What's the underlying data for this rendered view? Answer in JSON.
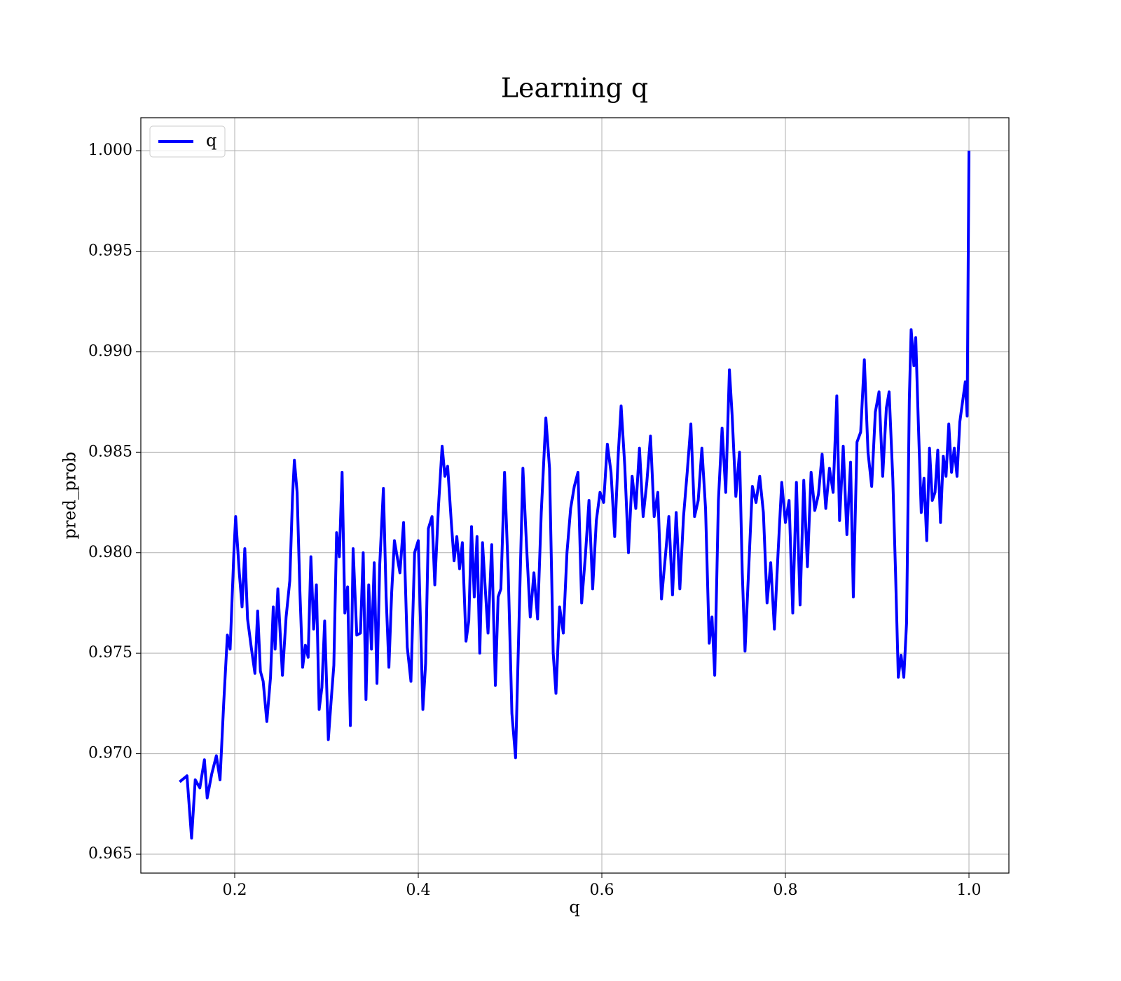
{
  "chart_data": {
    "type": "line",
    "title": "Learning q",
    "xlabel": "q",
    "ylabel": "pred_prob",
    "x": [
      0.14,
      0.148,
      0.153,
      0.157,
      0.162,
      0.167,
      0.17,
      0.175,
      0.18,
      0.184,
      0.188,
      0.192,
      0.195,
      0.199,
      0.201,
      0.205,
      0.208,
      0.211,
      0.214,
      0.218,
      0.222,
      0.225,
      0.228,
      0.231,
      0.235,
      0.239,
      0.242,
      0.244,
      0.247,
      0.252,
      0.256,
      0.26,
      0.263,
      0.265,
      0.268,
      0.271,
      0.274,
      0.277,
      0.28,
      0.283,
      0.286,
      0.289,
      0.292,
      0.295,
      0.298,
      0.302,
      0.305,
      0.308,
      0.311,
      0.314,
      0.317,
      0.32,
      0.323,
      0.326,
      0.329,
      0.333,
      0.337,
      0.34,
      0.343,
      0.346,
      0.349,
      0.352,
      0.355,
      0.358,
      0.362,
      0.365,
      0.368,
      0.371,
      0.374,
      0.38,
      0.384,
      0.388,
      0.392,
      0.396,
      0.4,
      0.405,
      0.408,
      0.411,
      0.415,
      0.418,
      0.422,
      0.426,
      0.429,
      0.432,
      0.436,
      0.439,
      0.442,
      0.445,
      0.448,
      0.452,
      0.455,
      0.458,
      0.461,
      0.464,
      0.467,
      0.47,
      0.473,
      0.476,
      0.48,
      0.484,
      0.487,
      0.49,
      0.494,
      0.498,
      0.502,
      0.506,
      0.51,
      0.514,
      0.518,
      0.522,
      0.526,
      0.53,
      0.534,
      0.539,
      0.543,
      0.547,
      0.55,
      0.554,
      0.558,
      0.562,
      0.566,
      0.57,
      0.574,
      0.578,
      0.582,
      0.586,
      0.59,
      0.594,
      0.598,
      0.602,
      0.606,
      0.61,
      0.614,
      0.618,
      0.621,
      0.625,
      0.629,
      0.633,
      0.637,
      0.641,
      0.645,
      0.649,
      0.653,
      0.657,
      0.661,
      0.665,
      0.669,
      0.673,
      0.677,
      0.681,
      0.685,
      0.689,
      0.693,
      0.697,
      0.701,
      0.705,
      0.709,
      0.713,
      0.717,
      0.72,
      0.723,
      0.727,
      0.731,
      0.735,
      0.739,
      0.742,
      0.746,
      0.75,
      0.753,
      0.756,
      0.76,
      0.764,
      0.768,
      0.772,
      0.776,
      0.78,
      0.784,
      0.788,
      0.792,
      0.796,
      0.8,
      0.804,
      0.808,
      0.812,
      0.816,
      0.82,
      0.824,
      0.828,
      0.832,
      0.836,
      0.84,
      0.844,
      0.848,
      0.852,
      0.856,
      0.859,
      0.863,
      0.867,
      0.871,
      0.874,
      0.878,
      0.882,
      0.886,
      0.89,
      0.894,
      0.898,
      0.902,
      0.906,
      0.91,
      0.913,
      0.917,
      0.92,
      0.923,
      0.926,
      0.929,
      0.932,
      0.935,
      0.937,
      0.94,
      0.942,
      0.945,
      0.948,
      0.951,
      0.954,
      0.957,
      0.96,
      0.963,
      0.966,
      0.969,
      0.972,
      0.975,
      0.978,
      0.981,
      0.984,
      0.987,
      0.99,
      0.993,
      0.996,
      0.998,
      1.0
    ],
    "series": [
      {
        "name": "q",
        "color": "#0000ff",
        "values": [
          0.9686,
          0.9689,
          0.9658,
          0.9687,
          0.9683,
          0.9697,
          0.9678,
          0.969,
          0.9699,
          0.9687,
          0.9725,
          0.9759,
          0.9752,
          0.9799,
          0.9818,
          0.979,
          0.9773,
          0.9802,
          0.9767,
          0.9753,
          0.974,
          0.9771,
          0.9741,
          0.9736,
          0.9716,
          0.9738,
          0.9773,
          0.9752,
          0.9782,
          0.9739,
          0.9768,
          0.9786,
          0.9828,
          0.9846,
          0.983,
          0.9781,
          0.9743,
          0.9754,
          0.9748,
          0.9798,
          0.9762,
          0.9784,
          0.9722,
          0.9733,
          0.9766,
          0.9707,
          0.9726,
          0.9744,
          0.981,
          0.9798,
          0.984,
          0.977,
          0.9783,
          0.9714,
          0.9802,
          0.9759,
          0.976,
          0.98,
          0.9727,
          0.9784,
          0.9752,
          0.9795,
          0.9735,
          0.9794,
          0.9832,
          0.9778,
          0.9743,
          0.978,
          0.9806,
          0.979,
          0.9815,
          0.9753,
          0.9736,
          0.98,
          0.9806,
          0.9722,
          0.9745,
          0.9812,
          0.9818,
          0.9784,
          0.9823,
          0.9853,
          0.9838,
          0.9843,
          0.9815,
          0.9796,
          0.9808,
          0.9792,
          0.9805,
          0.9756,
          0.9766,
          0.9813,
          0.9778,
          0.9808,
          0.975,
          0.9805,
          0.9782,
          0.976,
          0.9804,
          0.9734,
          0.9778,
          0.9782,
          0.984,
          0.979,
          0.972,
          0.9698,
          0.977,
          0.9842,
          0.9803,
          0.9768,
          0.979,
          0.9767,
          0.982,
          0.9867,
          0.9842,
          0.975,
          0.973,
          0.9773,
          0.976,
          0.98,
          0.9822,
          0.9833,
          0.984,
          0.9775,
          0.9798,
          0.9826,
          0.9782,
          0.9816,
          0.983,
          0.9825,
          0.9854,
          0.984,
          0.9808,
          0.985,
          0.9873,
          0.9843,
          0.98,
          0.9838,
          0.9822,
          0.9852,
          0.9818,
          0.9835,
          0.9858,
          0.9818,
          0.983,
          0.9777,
          0.9797,
          0.9818,
          0.9779,
          0.982,
          0.9782,
          0.9818,
          0.984,
          0.9864,
          0.9818,
          0.9826,
          0.9852,
          0.9822,
          0.9755,
          0.9768,
          0.9739,
          0.9826,
          0.9862,
          0.983,
          0.9891,
          0.9868,
          0.9828,
          0.985,
          0.979,
          0.9751,
          0.9792,
          0.9833,
          0.9825,
          0.9838,
          0.982,
          0.9775,
          0.9795,
          0.9762,
          0.98,
          0.9835,
          0.9815,
          0.9826,
          0.977,
          0.9835,
          0.9774,
          0.9836,
          0.9793,
          0.984,
          0.9821,
          0.9829,
          0.9849,
          0.9822,
          0.9842,
          0.983,
          0.9878,
          0.9816,
          0.9853,
          0.9809,
          0.9845,
          0.9778,
          0.9855,
          0.986,
          0.9896,
          0.985,
          0.9833,
          0.987,
          0.988,
          0.9838,
          0.9872,
          0.988,
          0.9837,
          0.979,
          0.9738,
          0.9749,
          0.9738,
          0.9765,
          0.9876,
          0.9911,
          0.9893,
          0.9907,
          0.9862,
          0.982,
          0.9837,
          0.9806,
          0.9852,
          0.9826,
          0.983,
          0.9851,
          0.9815,
          0.9848,
          0.9838,
          0.9864,
          0.984,
          0.9852,
          0.9838,
          0.9865,
          0.9875,
          0.9885,
          0.9868,
          1.0
        ]
      }
    ],
    "xlim": [
      0.0977,
      1.0435
    ],
    "ylim": [
      0.96406,
      1.00164
    ],
    "xticks": [
      0.2,
      0.4,
      0.6,
      0.8,
      {
        "value": 1.0,
        "label": "1.0"
      }
    ],
    "yticks": [
      0.965,
      {
        "value": 0.97,
        "label": "0.970"
      },
      0.975,
      {
        "value": 0.98,
        "label": "0.980"
      },
      0.985,
      {
        "value": 0.99,
        "label": "0.990"
      },
      0.995,
      {
        "value": 1.0,
        "label": "1.000"
      }
    ],
    "grid": true,
    "legend": "upper-left"
  }
}
